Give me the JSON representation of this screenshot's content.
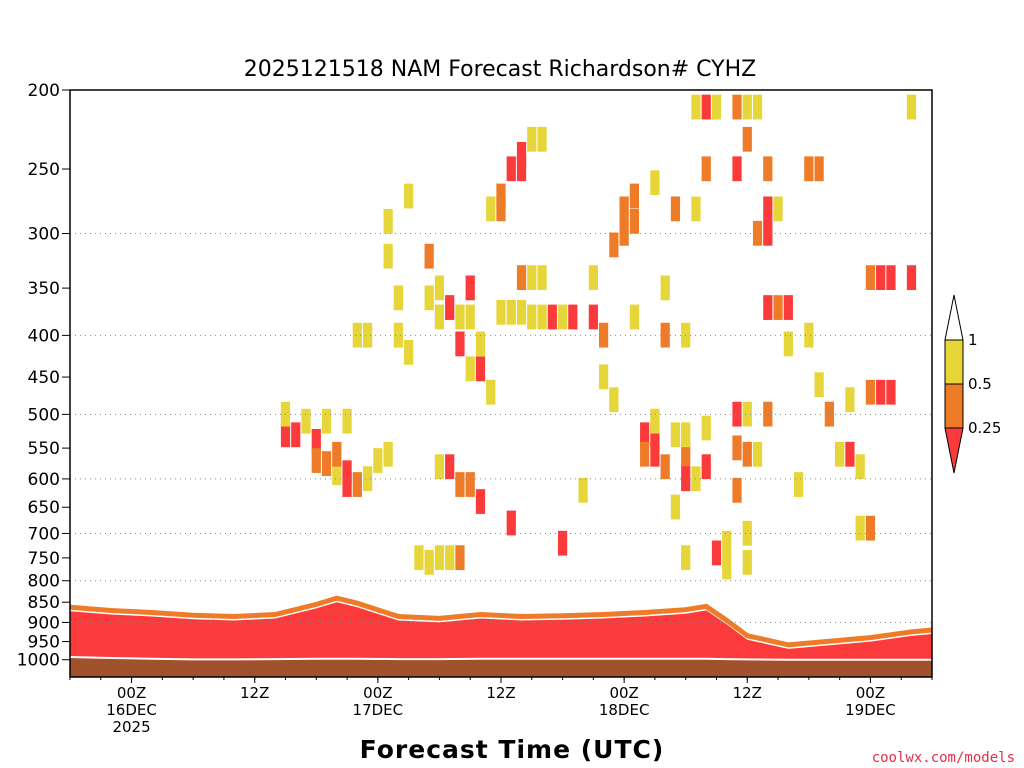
{
  "chart_data": {
    "type": "heatmap",
    "title": "2025121518 NAM Forecast Richardson# CYHZ",
    "xlabel": "Forecast Time (UTC)",
    "ylabel": "",
    "y_scale": "log",
    "y_reversed": true,
    "y_ticks": [
      200,
      250,
      300,
      350,
      400,
      450,
      500,
      550,
      600,
      650,
      700,
      750,
      800,
      850,
      900,
      950,
      1000
    ],
    "y_gridlines": [
      300,
      400,
      500,
      600,
      700,
      800,
      900
    ],
    "x_ticks": [
      {
        "hour": 6,
        "line1": "00Z",
        "line2": "16DEC",
        "line3": "2025"
      },
      {
        "hour": 18,
        "line1": "12Z",
        "line2": "",
        "line3": ""
      },
      {
        "hour": 30,
        "line1": "00Z",
        "line2": "17DEC",
        "line3": ""
      },
      {
        "hour": 42,
        "line1": "12Z",
        "line2": "",
        "line3": ""
      },
      {
        "hour": 54,
        "line1": "00Z",
        "line2": "18DEC",
        "line3": ""
      },
      {
        "hour": 66,
        "line1": "12Z",
        "line2": "",
        "line3": ""
      },
      {
        "hour": 78,
        "line1": "00Z",
        "line2": "19DEC",
        "line3": ""
      }
    ],
    "x_range_hours": [
      0,
      84
    ],
    "legend": {
      "labels": [
        "1",
        "0.5",
        "0.25"
      ],
      "bins": [
        {
          "range": "0.5-1",
          "color": "#e6d63a"
        },
        {
          "range": "0.25-0.5",
          "color": "#ee7b27"
        },
        {
          "range": "<0.25",
          "color": "#fb3b3b"
        }
      ],
      "placement": "right"
    },
    "colors": {
      "yellow": "#e6d63a",
      "orange": "#ee7b27",
      "red": "#fb3b3b",
      "ground": "#a0522d"
    },
    "surface_layer": {
      "hours": [
        0,
        4,
        8,
        12,
        16,
        20,
        24,
        26,
        28,
        32,
        36,
        40,
        44,
        48,
        52,
        56,
        60,
        62,
        64,
        66,
        70,
        74,
        78,
        82,
        84
      ],
      "red_top": [
        872,
        880,
        885,
        892,
        895,
        890,
        865,
        850,
        862,
        895,
        900,
        890,
        895,
        893,
        890,
        885,
        878,
        870,
        905,
        945,
        970,
        960,
        950,
        935,
        930
      ],
      "ground_top": [
        995,
        998,
        1000,
        1002,
        1002,
        1001,
        1000,
        1000,
        1000,
        1001,
        1001,
        1000,
        1000,
        1000,
        1000,
        1000,
        1000,
        1000,
        1001,
        1002,
        1003,
        1003,
        1003,
        1003,
        1003
      ]
    },
    "cells": [
      {
        "t": 21,
        "p": 530,
        "c": "r"
      },
      {
        "t": 21,
        "p": 500,
        "c": "y"
      },
      {
        "t": 22,
        "p": 530,
        "c": "r"
      },
      {
        "t": 23,
        "p": 510,
        "c": "y"
      },
      {
        "t": 24,
        "p": 540,
        "c": "r"
      },
      {
        "t": 24,
        "p": 570,
        "c": "o"
      },
      {
        "t": 25,
        "p": 575,
        "c": "o"
      },
      {
        "t": 25,
        "p": 510,
        "c": "y"
      },
      {
        "t": 26,
        "p": 590,
        "c": "y"
      },
      {
        "t": 26,
        "p": 560,
        "c": "o"
      },
      {
        "t": 27,
        "p": 590,
        "c": "r"
      },
      {
        "t": 27,
        "p": 610,
        "c": "r"
      },
      {
        "t": 27,
        "p": 510,
        "c": "y"
      },
      {
        "t": 28,
        "p": 610,
        "c": "o"
      },
      {
        "t": 28,
        "p": 400,
        "c": "y"
      },
      {
        "t": 29,
        "p": 400,
        "c": "y"
      },
      {
        "t": 29,
        "p": 600,
        "c": "y"
      },
      {
        "t": 30,
        "p": 570,
        "c": "y"
      },
      {
        "t": 31,
        "p": 320,
        "c": "y"
      },
      {
        "t": 31,
        "p": 290,
        "c": "y"
      },
      {
        "t": 31,
        "p": 560,
        "c": "y"
      },
      {
        "t": 32,
        "p": 360,
        "c": "y"
      },
      {
        "t": 32,
        "p": 400,
        "c": "y"
      },
      {
        "t": 33,
        "p": 270,
        "c": "y"
      },
      {
        "t": 33,
        "p": 420,
        "c": "y"
      },
      {
        "t": 34,
        "p": 750,
        "c": "y"
      },
      {
        "t": 35,
        "p": 760,
        "c": "y"
      },
      {
        "t": 35,
        "p": 320,
        "c": "o"
      },
      {
        "t": 35,
        "p": 360,
        "c": "y"
      },
      {
        "t": 36,
        "p": 380,
        "c": "y"
      },
      {
        "t": 36,
        "p": 350,
        "c": "y"
      },
      {
        "t": 36,
        "p": 750,
        "c": "y"
      },
      {
        "t": 36,
        "p": 580,
        "c": "y"
      },
      {
        "t": 37,
        "p": 370,
        "c": "r"
      },
      {
        "t": 37,
        "p": 580,
        "c": "r"
      },
      {
        "t": 37,
        "p": 750,
        "c": "y"
      },
      {
        "t": 38,
        "p": 380,
        "c": "y"
      },
      {
        "t": 38,
        "p": 410,
        "c": "r"
      },
      {
        "t": 38,
        "p": 610,
        "c": "o"
      },
      {
        "t": 38,
        "p": 750,
        "c": "o"
      },
      {
        "t": 39,
        "p": 350,
        "c": "r"
      },
      {
        "t": 39,
        "p": 380,
        "c": "y"
      },
      {
        "t": 39,
        "p": 440,
        "c": "y"
      },
      {
        "t": 39,
        "p": 610,
        "c": "o"
      },
      {
        "t": 40,
        "p": 410,
        "c": "y"
      },
      {
        "t": 40,
        "p": 640,
        "c": "r"
      },
      {
        "t": 40,
        "p": 440,
        "c": "r"
      },
      {
        "t": 41,
        "p": 280,
        "c": "y"
      },
      {
        "t": 41,
        "p": 470,
        "c": "y"
      },
      {
        "t": 42,
        "p": 270,
        "c": "o"
      },
      {
        "t": 42,
        "p": 280,
        "c": "o"
      },
      {
        "t": 42,
        "p": 375,
        "c": "y"
      },
      {
        "t": 43,
        "p": 250,
        "c": "r"
      },
      {
        "t": 43,
        "p": 375,
        "c": "y"
      },
      {
        "t": 43,
        "p": 680,
        "c": "r"
      },
      {
        "t": 44,
        "p": 250,
        "c": "r"
      },
      {
        "t": 44,
        "p": 340,
        "c": "o"
      },
      {
        "t": 44,
        "p": 375,
        "c": "y"
      },
      {
        "t": 44,
        "p": 240,
        "c": "r"
      },
      {
        "t": 45,
        "p": 230,
        "c": "y"
      },
      {
        "t": 45,
        "p": 380,
        "c": "y"
      },
      {
        "t": 45,
        "p": 340,
        "c": "y"
      },
      {
        "t": 46,
        "p": 230,
        "c": "y"
      },
      {
        "t": 46,
        "p": 380,
        "c": "y"
      },
      {
        "t": 46,
        "p": 340,
        "c": "y"
      },
      {
        "t": 47,
        "p": 380,
        "c": "r"
      },
      {
        "t": 48,
        "p": 720,
        "c": "r"
      },
      {
        "t": 48,
        "p": 380,
        "c": "y"
      },
      {
        "t": 49,
        "p": 380,
        "c": "r"
      },
      {
        "t": 50,
        "p": 620,
        "c": "y"
      },
      {
        "t": 51,
        "p": 380,
        "c": "r"
      },
      {
        "t": 51,
        "p": 340,
        "c": "y"
      },
      {
        "t": 52,
        "p": 400,
        "c": "o"
      },
      {
        "t": 52,
        "p": 450,
        "c": "y"
      },
      {
        "t": 53,
        "p": 480,
        "c": "y"
      },
      {
        "t": 53,
        "p": 310,
        "c": "o"
      },
      {
        "t": 54,
        "p": 280,
        "c": "o"
      },
      {
        "t": 54,
        "p": 300,
        "c": "o"
      },
      {
        "t": 55,
        "p": 270,
        "c": "o"
      },
      {
        "t": 55,
        "p": 290,
        "c": "o"
      },
      {
        "t": 55,
        "p": 380,
        "c": "y"
      },
      {
        "t": 56,
        "p": 530,
        "c": "r"
      },
      {
        "t": 56,
        "p": 560,
        "c": "o"
      },
      {
        "t": 57,
        "p": 530,
        "c": "r"
      },
      {
        "t": 57,
        "p": 560,
        "c": "r"
      },
      {
        "t": 57,
        "p": 510,
        "c": "y"
      },
      {
        "t": 57,
        "p": 260,
        "c": "y"
      },
      {
        "t": 58,
        "p": 580,
        "c": "o"
      },
      {
        "t": 58,
        "p": 350,
        "c": "y"
      },
      {
        "t": 58,
        "p": 400,
        "c": "o"
      },
      {
        "t": 59,
        "p": 530,
        "c": "y"
      },
      {
        "t": 59,
        "p": 650,
        "c": "y"
      },
      {
        "t": 59,
        "p": 280,
        "c": "o"
      },
      {
        "t": 60,
        "p": 560,
        "c": "o"
      },
      {
        "t": 60,
        "p": 600,
        "c": "r"
      },
      {
        "t": 60,
        "p": 530,
        "c": "y"
      },
      {
        "t": 60,
        "p": 400,
        "c": "y"
      },
      {
        "t": 60,
        "p": 750,
        "c": "y"
      },
      {
        "t": 61,
        "p": 600,
        "c": "y"
      },
      {
        "t": 61,
        "p": 210,
        "c": "y"
      },
      {
        "t": 61,
        "p": 280,
        "c": "y"
      },
      {
        "t": 62,
        "p": 210,
        "c": "r"
      },
      {
        "t": 62,
        "p": 520,
        "c": "y"
      },
      {
        "t": 62,
        "p": 580,
        "c": "r"
      },
      {
        "t": 62,
        "p": 250,
        "c": "o"
      },
      {
        "t": 63,
        "p": 740,
        "c": "r"
      },
      {
        "t": 63,
        "p": 210,
        "c": "y"
      },
      {
        "t": 64,
        "p": 720,
        "c": "y"
      },
      {
        "t": 64,
        "p": 770,
        "c": "y"
      },
      {
        "t": 65,
        "p": 210,
        "c": "o"
      },
      {
        "t": 65,
        "p": 250,
        "c": "r"
      },
      {
        "t": 65,
        "p": 500,
        "c": "r"
      },
      {
        "t": 65,
        "p": 550,
        "c": "o"
      },
      {
        "t": 65,
        "p": 620,
        "c": "o"
      },
      {
        "t": 66,
        "p": 210,
        "c": "y"
      },
      {
        "t": 66,
        "p": 230,
        "c": "o"
      },
      {
        "t": 66,
        "p": 500,
        "c": "y"
      },
      {
        "t": 66,
        "p": 560,
        "c": "o"
      },
      {
        "t": 66,
        "p": 700,
        "c": "y"
      },
      {
        "t": 66,
        "p": 760,
        "c": "y"
      },
      {
        "t": 67,
        "p": 210,
        "c": "y"
      },
      {
        "t": 67,
        "p": 300,
        "c": "o"
      },
      {
        "t": 67,
        "p": 560,
        "c": "y"
      },
      {
        "t": 68,
        "p": 250,
        "c": "o"
      },
      {
        "t": 68,
        "p": 280,
        "c": "r"
      },
      {
        "t": 68,
        "p": 300,
        "c": "r"
      },
      {
        "t": 68,
        "p": 370,
        "c": "r"
      },
      {
        "t": 68,
        "p": 500,
        "c": "o"
      },
      {
        "t": 69,
        "p": 370,
        "c": "o"
      },
      {
        "t": 69,
        "p": 280,
        "c": "y"
      },
      {
        "t": 70,
        "p": 370,
        "c": "r"
      },
      {
        "t": 70,
        "p": 410,
        "c": "y"
      },
      {
        "t": 71,
        "p": 610,
        "c": "y"
      },
      {
        "t": 72,
        "p": 250,
        "c": "o"
      },
      {
        "t": 72,
        "p": 400,
        "c": "y"
      },
      {
        "t": 73,
        "p": 250,
        "c": "o"
      },
      {
        "t": 73,
        "p": 460,
        "c": "y"
      },
      {
        "t": 74,
        "p": 500,
        "c": "o"
      },
      {
        "t": 75,
        "p": 560,
        "c": "y"
      },
      {
        "t": 76,
        "p": 560,
        "c": "r"
      },
      {
        "t": 76,
        "p": 480,
        "c": "y"
      },
      {
        "t": 77,
        "p": 580,
        "c": "y"
      },
      {
        "t": 77,
        "p": 690,
        "c": "y"
      },
      {
        "t": 78,
        "p": 340,
        "c": "o"
      },
      {
        "t": 78,
        "p": 470,
        "c": "o"
      },
      {
        "t": 78,
        "p": 690,
        "c": "o"
      },
      {
        "t": 79,
        "p": 340,
        "c": "r"
      },
      {
        "t": 79,
        "p": 470,
        "c": "r"
      },
      {
        "t": 80,
        "p": 340,
        "c": "r"
      },
      {
        "t": 80,
        "p": 470,
        "c": "r"
      },
      {
        "t": 82,
        "p": 340,
        "c": "r"
      },
      {
        "t": 82,
        "p": 210,
        "c": "y"
      }
    ]
  },
  "credit": "coolwx.com/models"
}
